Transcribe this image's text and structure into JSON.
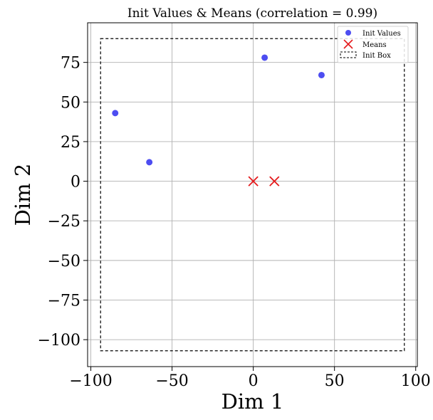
{
  "chart_data": {
    "type": "scatter",
    "title": "Init Values & Means (correlation = 0.99)",
    "xlabel": "Dim 1",
    "ylabel": "Dim 2",
    "xlim": [
      -102,
      101
    ],
    "ylim": [
      -117,
      100
    ],
    "xticks": [
      -100,
      -50,
      0,
      50,
      100
    ],
    "xtick_labels": [
      "−100",
      "−50",
      "0",
      "50",
      "100"
    ],
    "yticks": [
      -100,
      -75,
      -50,
      -25,
      0,
      25,
      50,
      75
    ],
    "ytick_labels": [
      "−100",
      "−75",
      "−50",
      "−25",
      "0",
      "25",
      "50",
      "75"
    ],
    "grid": true,
    "legend_position": "top-right",
    "series": [
      {
        "name": "Init Values",
        "marker": "circle",
        "color": "#3a3aef",
        "points": [
          {
            "x": -85,
            "y": 43
          },
          {
            "x": -64,
            "y": 12
          },
          {
            "x": 7,
            "y": 78
          },
          {
            "x": 42,
            "y": 67
          }
        ]
      },
      {
        "name": "Means",
        "marker": "x",
        "color": "#e41a1c",
        "points": [
          {
            "x": 0,
            "y": 0
          },
          {
            "x": 13,
            "y": 0
          }
        ]
      }
    ],
    "box": {
      "name": "Init Box",
      "x": [
        -94,
        93
      ],
      "y": [
        -107,
        90
      ],
      "color": "#000000",
      "style": "dashed"
    }
  }
}
